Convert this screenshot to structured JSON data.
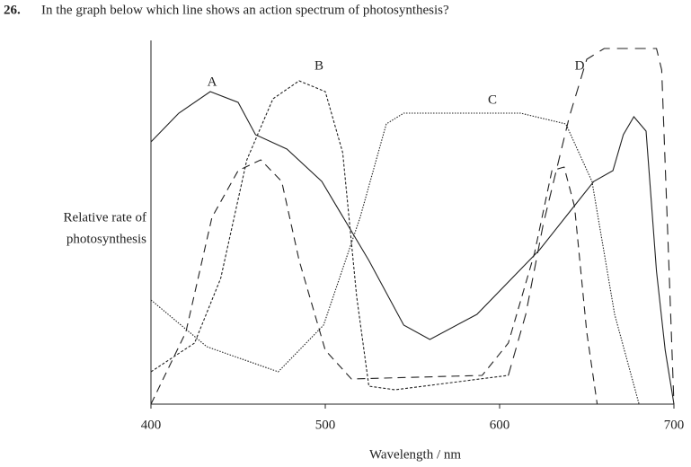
{
  "question": {
    "number": "26.",
    "text": "In the graph below which line shows an action spectrum of photosynthesis?"
  },
  "chart_data": {
    "type": "line",
    "y_label": [
      "Relative rate of",
      "photosynthesis"
    ],
    "x_label": "Wavelength / nm",
    "xlim": [
      400,
      700
    ],
    "xticks": [
      400,
      500,
      600,
      700
    ],
    "ylim": [
      0,
      100
    ],
    "series": [
      {
        "name": "A",
        "color": "#222222",
        "dash": "none",
        "x": [
          400,
          416,
          434,
          450,
          460,
          478,
          498,
          525,
          545,
          560,
          587,
          623,
          654,
          665,
          671,
          677,
          684,
          690,
          695,
          700
        ],
        "values": [
          73,
          81,
          87,
          84,
          75,
          71,
          62,
          40,
          22,
          18,
          25,
          43,
          62,
          65,
          75,
          80,
          76,
          37,
          15,
          0
        ]
      },
      {
        "name": "B",
        "color": "#222222",
        "dash": "3,2",
        "x": [
          400,
          425,
          440,
          455,
          470,
          485,
          500,
          510,
          518,
          525,
          540,
          605
        ],
        "values": [
          9,
          17,
          35,
          68,
          85,
          90,
          87,
          70,
          30,
          5,
          4,
          8
        ]
      },
      {
        "name": "C",
        "color": "#222222",
        "dash": "1.5,1.5",
        "x": [
          400,
          432,
          473,
          499,
          520,
          535,
          545,
          612,
          638,
          653,
          666,
          680
        ],
        "values": [
          29,
          16,
          9,
          22,
          52,
          78,
          81,
          81,
          78,
          62,
          25,
          0
        ]
      },
      {
        "name": "D",
        "color": "#222222",
        "dash": "12,8",
        "x": [
          605,
          615,
          625,
          640,
          650,
          660,
          690,
          693,
          697,
          700
        ],
        "values": [
          8,
          25,
          50,
          80,
          96,
          99,
          99,
          93,
          40,
          0
        ]
      },
      {
        "color": "#222222",
        "dash": "9,6",
        "x": [
          400,
          420,
          435,
          450,
          463,
          475,
          485,
          500,
          515,
          590,
          605,
          620,
          630,
          637,
          643,
          650,
          656
        ],
        "values": [
          0,
          20,
          52,
          65,
          68,
          62,
          40,
          15,
          7,
          8,
          17,
          42,
          65,
          66,
          55,
          20,
          0
        ]
      }
    ]
  }
}
